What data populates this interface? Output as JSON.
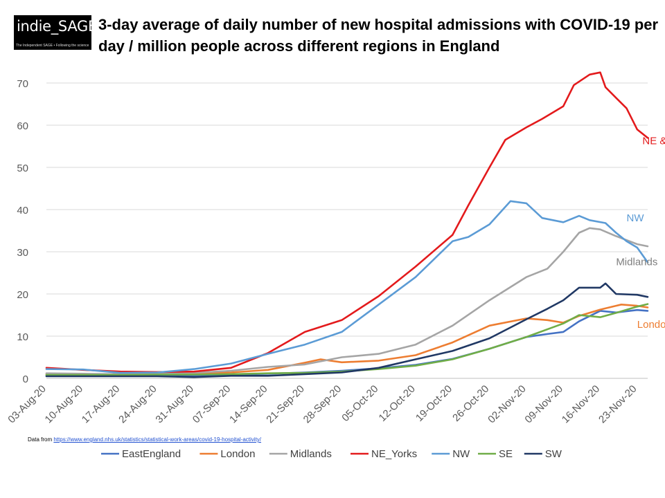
{
  "logo": {
    "name": "indie_SAGE",
    "tagline": "The Independent SAGE • Following the science"
  },
  "title": "3-day average of daily number of new hospital admissions with COVID-19 per day / million people across different regions in England",
  "source": {
    "prefix": "Data from",
    "url": "https://www.england.nhs.uk/statistics/statistical-work-areas/covid-19-hospital-activity/"
  },
  "chart_data": {
    "type": "line",
    "title": "3-day average of daily number of new hospital admissions with COVID-19 per day / million people across different regions in England",
    "xlabel": "",
    "ylabel": "",
    "x_dates": [
      "03-Aug-20",
      "10-Aug-20",
      "17-Aug-20",
      "24-Aug-20",
      "31-Aug-20",
      "07-Sep-20",
      "14-Sep-20",
      "21-Sep-20",
      "28-Sep-20",
      "05-Oct-20",
      "12-Oct-20",
      "19-Oct-20",
      "26-Oct-20",
      "02-Nov-20",
      "09-Nov-20",
      "16-Nov-20",
      "23-Nov-20"
    ],
    "ylim": [
      0,
      70
    ],
    "yticks": [
      0,
      10,
      20,
      30,
      40,
      50,
      60,
      70
    ],
    "grid": "horizontal",
    "legend_position": "bottom",
    "series": [
      {
        "name": "EastEngland",
        "color": "#4472c4",
        "points": [
          [
            "03-Aug-20",
            0.7
          ],
          [
            "10-Aug-20",
            0.8
          ],
          [
            "17-Aug-20",
            0.6
          ],
          [
            "24-Aug-20",
            0.6
          ],
          [
            "31-Aug-20",
            0.7
          ],
          [
            "07-Sep-20",
            0.9
          ],
          [
            "14-Sep-20",
            1.1
          ],
          [
            "21-Sep-20",
            1.4
          ],
          [
            "28-Sep-20",
            1.8
          ],
          [
            "05-Oct-20",
            2.4
          ],
          [
            "12-Oct-20",
            3.2
          ],
          [
            "19-Oct-20",
            4.6
          ],
          [
            "26-Oct-20",
            7.0
          ],
          [
            "02-Nov-20",
            9.8
          ],
          [
            "06-Nov-20",
            10.5
          ],
          [
            "09-Nov-20",
            11.0
          ],
          [
            "12-Nov-20",
            13.5
          ],
          [
            "16-Nov-20",
            16.0
          ],
          [
            "19-Nov-20",
            15.6
          ],
          [
            "23-Nov-20",
            16.2
          ],
          [
            "25-Nov-20",
            16.0
          ]
        ]
      },
      {
        "name": "London",
        "color": "#ed7d31",
        "points": [
          [
            "03-Aug-20",
            1.0
          ],
          [
            "10-Aug-20",
            1.0
          ],
          [
            "17-Aug-20",
            1.0
          ],
          [
            "24-Aug-20",
            1.1
          ],
          [
            "31-Aug-20",
            1.1
          ],
          [
            "07-Sep-20",
            1.4
          ],
          [
            "14-Sep-20",
            2.0
          ],
          [
            "21-Sep-20",
            3.7
          ],
          [
            "24-Sep-20",
            4.5
          ],
          [
            "28-Sep-20",
            3.8
          ],
          [
            "05-Oct-20",
            4.2
          ],
          [
            "12-Oct-20",
            5.5
          ],
          [
            "19-Oct-20",
            8.5
          ],
          [
            "26-Oct-20",
            12.5
          ],
          [
            "02-Nov-20",
            14.2
          ],
          [
            "06-Nov-20",
            13.8
          ],
          [
            "09-Nov-20",
            13.2
          ],
          [
            "12-Nov-20",
            14.8
          ],
          [
            "16-Nov-20",
            16.3
          ],
          [
            "20-Nov-20",
            17.5
          ],
          [
            "23-Nov-20",
            17.2
          ],
          [
            "25-Nov-20",
            16.8
          ]
        ]
      },
      {
        "name": "Midlands",
        "color": "#a5a5a5",
        "points": [
          [
            "03-Aug-20",
            1.2
          ],
          [
            "10-Aug-20",
            1.1
          ],
          [
            "17-Aug-20",
            1.0
          ],
          [
            "24-Aug-20",
            1.2
          ],
          [
            "31-Aug-20",
            1.3
          ],
          [
            "07-Sep-20",
            1.8
          ],
          [
            "14-Sep-20",
            2.7
          ],
          [
            "21-Sep-20",
            3.3
          ],
          [
            "28-Sep-20",
            5.0
          ],
          [
            "05-Oct-20",
            5.8
          ],
          [
            "12-Oct-20",
            8.0
          ],
          [
            "19-Oct-20",
            12.5
          ],
          [
            "26-Oct-20",
            18.5
          ],
          [
            "02-Nov-20",
            24.0
          ],
          [
            "06-Nov-20",
            26.0
          ],
          [
            "09-Nov-20",
            30.0
          ],
          [
            "12-Nov-20",
            34.5
          ],
          [
            "14-Nov-20",
            35.6
          ],
          [
            "16-Nov-20",
            35.3
          ],
          [
            "19-Nov-20",
            33.7
          ],
          [
            "23-Nov-20",
            31.8
          ],
          [
            "25-Nov-20",
            31.3
          ]
        ]
      },
      {
        "name": "NE_Yorks",
        "color": "#e31a1c",
        "points": [
          [
            "03-Aug-20",
            2.5
          ],
          [
            "10-Aug-20",
            2.0
          ],
          [
            "17-Aug-20",
            1.6
          ],
          [
            "24-Aug-20",
            1.5
          ],
          [
            "31-Aug-20",
            1.6
          ],
          [
            "07-Sep-20",
            2.5
          ],
          [
            "14-Sep-20",
            6.0
          ],
          [
            "21-Sep-20",
            11.0
          ],
          [
            "28-Sep-20",
            13.8
          ],
          [
            "05-Oct-20",
            19.5
          ],
          [
            "12-Oct-20",
            26.5
          ],
          [
            "19-Oct-20",
            34.0
          ],
          [
            "22-Oct-20",
            41.0
          ],
          [
            "26-Oct-20",
            50.0
          ],
          [
            "29-Oct-20",
            56.5
          ],
          [
            "02-Nov-20",
            59.5
          ],
          [
            "05-Nov-20",
            61.5
          ],
          [
            "09-Nov-20",
            64.5
          ],
          [
            "11-Nov-20",
            69.5
          ],
          [
            "14-Nov-20",
            72.0
          ],
          [
            "16-Nov-20",
            72.5
          ],
          [
            "17-Nov-20",
            69.0
          ],
          [
            "19-Nov-20",
            66.5
          ],
          [
            "21-Nov-20",
            64.0
          ],
          [
            "23-Nov-20",
            59.0
          ],
          [
            "25-Nov-20",
            57.0
          ]
        ]
      },
      {
        "name": "NW",
        "color": "#5b9bd5",
        "points": [
          [
            "03-Aug-20",
            2.2
          ],
          [
            "10-Aug-20",
            2.1
          ],
          [
            "17-Aug-20",
            1.3
          ],
          [
            "24-Aug-20",
            1.4
          ],
          [
            "31-Aug-20",
            2.2
          ],
          [
            "07-Sep-20",
            3.5
          ],
          [
            "14-Sep-20",
            5.8
          ],
          [
            "21-Sep-20",
            8.0
          ],
          [
            "28-Sep-20",
            11.0
          ],
          [
            "05-Oct-20",
            17.5
          ],
          [
            "12-Oct-20",
            24.0
          ],
          [
            "19-Oct-20",
            32.5
          ],
          [
            "22-Oct-20",
            33.5
          ],
          [
            "26-Oct-20",
            36.5
          ],
          [
            "30-Oct-20",
            42.0
          ],
          [
            "02-Nov-20",
            41.5
          ],
          [
            "05-Nov-20",
            38.0
          ],
          [
            "09-Nov-20",
            37.0
          ],
          [
            "12-Nov-20",
            38.5
          ],
          [
            "14-Nov-20",
            37.5
          ],
          [
            "17-Nov-20",
            36.8
          ],
          [
            "19-Nov-20",
            34.5
          ],
          [
            "21-Nov-20",
            32.5
          ],
          [
            "23-Nov-20",
            31.0
          ],
          [
            "25-Nov-20",
            27.5
          ]
        ]
      },
      {
        "name": "SE",
        "color": "#70ad47",
        "points": [
          [
            "03-Aug-20",
            0.8
          ],
          [
            "10-Aug-20",
            0.8
          ],
          [
            "17-Aug-20",
            0.8
          ],
          [
            "24-Aug-20",
            0.9
          ],
          [
            "31-Aug-20",
            0.9
          ],
          [
            "07-Sep-20",
            1.0
          ],
          [
            "14-Sep-20",
            1.2
          ],
          [
            "21-Sep-20",
            1.3
          ],
          [
            "28-Sep-20",
            1.6
          ],
          [
            "05-Oct-20",
            2.2
          ],
          [
            "12-Oct-20",
            3.0
          ],
          [
            "19-Oct-20",
            4.5
          ],
          [
            "26-Oct-20",
            7.0
          ],
          [
            "02-Nov-20",
            9.8
          ],
          [
            "09-Nov-20",
            13.0
          ],
          [
            "12-Nov-20",
            15.0
          ],
          [
            "16-Nov-20",
            14.5
          ],
          [
            "19-Nov-20",
            15.5
          ],
          [
            "23-Nov-20",
            17.0
          ],
          [
            "25-Nov-20",
            17.6
          ]
        ]
      },
      {
        "name": "SW",
        "color": "#203864",
        "points": [
          [
            "03-Aug-20",
            0.5
          ],
          [
            "10-Aug-20",
            0.5
          ],
          [
            "17-Aug-20",
            0.5
          ],
          [
            "24-Aug-20",
            0.5
          ],
          [
            "31-Aug-20",
            0.3
          ],
          [
            "07-Sep-20",
            0.6
          ],
          [
            "14-Sep-20",
            0.6
          ],
          [
            "21-Sep-20",
            1.0
          ],
          [
            "28-Sep-20",
            1.4
          ],
          [
            "05-Oct-20",
            2.5
          ],
          [
            "12-Oct-20",
            4.5
          ],
          [
            "19-Oct-20",
            6.5
          ],
          [
            "26-Oct-20",
            9.5
          ],
          [
            "02-Nov-20",
            14.0
          ],
          [
            "06-Nov-20",
            16.5
          ],
          [
            "09-Nov-20",
            18.5
          ],
          [
            "12-Nov-20",
            21.5
          ],
          [
            "16-Nov-20",
            21.5
          ],
          [
            "17-Nov-20",
            22.5
          ],
          [
            "19-Nov-20",
            20.0
          ],
          [
            "23-Nov-20",
            19.8
          ],
          [
            "25-Nov-20",
            19.3
          ]
        ]
      }
    ],
    "annotations": [
      {
        "text": "NE & Yorks",
        "color": "#e31a1c",
        "x": "24-Nov-20",
        "y": 55.5
      },
      {
        "text": "NW",
        "color": "#5b9bd5",
        "x": "21-Nov-20",
        "y": 37.2
      },
      {
        "text": "Midlands",
        "color": "#7f7f7f",
        "x": "19-Nov-20",
        "y": 26.8
      },
      {
        "text": "London",
        "color": "#ed7d31",
        "x": "23-Nov-20",
        "y": 12.0
      }
    ]
  }
}
